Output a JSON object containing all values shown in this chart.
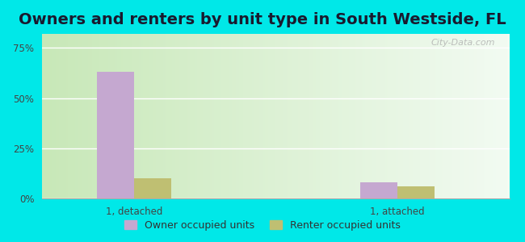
{
  "title": "Owners and renters by unit type in South Westside, FL",
  "categories": [
    "1, detached",
    "1, attached"
  ],
  "owner_values": [
    63.0,
    8.0
  ],
  "renter_values": [
    10.0,
    6.0
  ],
  "owner_color": "#c5a8d0",
  "renter_color": "#bfbf72",
  "owner_label": "Owner occupied units",
  "renter_label": "Renter occupied units",
  "yticks": [
    0,
    25,
    50,
    75
  ],
  "ytick_labels": [
    "0%",
    "25%",
    "50%",
    "75%"
  ],
  "ylim": [
    0,
    82
  ],
  "background_color": "#00e8e8",
  "bar_width": 0.28,
  "group_positions": [
    1.0,
    3.0
  ],
  "title_fontsize": 14,
  "watermark": "City-Data.com",
  "xlim": [
    0.3,
    3.85
  ]
}
